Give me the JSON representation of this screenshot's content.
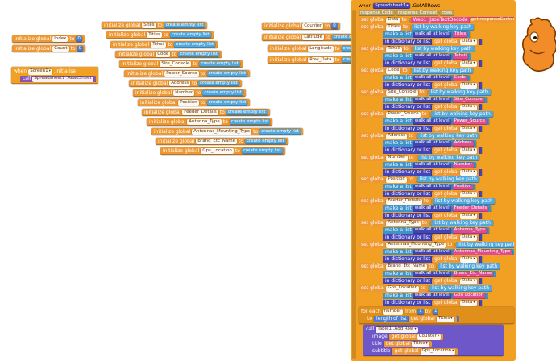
{
  "palette": {
    "variable_orange": "#EE9833",
    "event_gold": "#F2A024",
    "loop_gold": "#E08F1A",
    "list_cyan": "#55A8DB",
    "list_cyan_dark": "#3E94C8",
    "dictionary_navy": "#4444B4",
    "procedure_purple": "#8A55B1",
    "call_indigo": "#6E57C8",
    "text_pink": "#DE4D92",
    "math_blue": "#4D80D0",
    "param_tan": "#B89E5A",
    "mascot_orange": "#F28C28"
  },
  "labels": {
    "init": "initialize global",
    "to": "to",
    "create_empty_list": "create empty list",
    "set": "set global",
    "get": "get global",
    "walk_path": "list by walking key path",
    "make_list": "make a list",
    "walk_all": "walk all at level",
    "in_dict": "in dictionary or list",
    "when": "when",
    "do": "do",
    "call": "call",
    "for_each": "for each",
    "from": "from",
    "by": "by",
    "length_of_list": "length of list"
  },
  "left_inits": [
    {
      "name": "Index",
      "value": "0"
    },
    {
      "name": "Count",
      "value": "0"
    }
  ],
  "screen_event": {
    "component": "Screen1",
    "event": ".Initialise",
    "call": "Spreadsheet1 .ReadSheet"
  },
  "cascade_inits": [
    {
      "name": "Sites"
    },
    {
      "name": "Titles"
    },
    {
      "name": "Tehsil"
    },
    {
      "name": "Code"
    },
    {
      "name": "Site_Console"
    },
    {
      "name": "Power_Source"
    },
    {
      "name": "Address"
    },
    {
      "name": "Number"
    },
    {
      "name": "Position"
    },
    {
      "name": "Feeder_Details"
    },
    {
      "name": "Antenna_Type"
    },
    {
      "name": "Antennas_Mounting_Type"
    },
    {
      "name": "Brand_Etc_Name"
    },
    {
      "name": "Gps_Location"
    }
  ],
  "right_inits": [
    {
      "name": "Counter",
      "kind": "number",
      "value": "0"
    },
    {
      "name": "Latitude",
      "kind": "list"
    },
    {
      "name": "Longitude",
      "kind": "list"
    },
    {
      "name": "Row_Data",
      "kind": "list"
    }
  ],
  "main_event": {
    "component": "Spreadsheet1",
    "event": ".GotAllRows",
    "params": [
      {
        "label": "response Code"
      },
      {
        "label": "response Content"
      },
      {
        "label": "rows"
      }
    ],
    "first_row": {
      "target": "Data",
      "call": "Web1 .JsonTextDecode",
      "arg": "get responseContent"
    },
    "rows": [
      {
        "name": "Titles",
        "key": "Titles",
        "source": "Data"
      },
      {
        "name": "Tehsil",
        "key": "Tehsil",
        "source": "Data"
      },
      {
        "name": "Code",
        "key": "Code",
        "source": "Data"
      },
      {
        "name": "Site_Console",
        "key": "Site_Console",
        "source": "Data"
      },
      {
        "name": "Power_Source",
        "key": "Power_Source",
        "source": "Data"
      },
      {
        "name": "Address",
        "key": "Address",
        "source": "Data"
      },
      {
        "name": "Number",
        "key": "Number",
        "source": "Data"
      },
      {
        "name": "Position",
        "key": "Position",
        "source": "Data"
      },
      {
        "name": "Feeder_Details",
        "key": "Feeder_Details",
        "source": "Data"
      },
      {
        "name": "Antenna_Type",
        "key": "Antenna_Type",
        "source": "Data"
      },
      {
        "name": "Antennas_Mounting_Type",
        "key": "Antennas_Mounting_Type",
        "source": "Data"
      },
      {
        "name": "Brand_Etc_Name",
        "key": "Brand_Etc_Name",
        "source": "Data"
      },
      {
        "name": "Gps_Location",
        "key": "Gps_Location",
        "source": "Data"
      }
    ],
    "loop": {
      "var": "number",
      "from": "1",
      "by": "1",
      "list_source": "Titles"
    },
    "call": {
      "proc": "Table1 .Add Row",
      "args": [
        {
          "label": "image",
          "value_get": "Counter"
        },
        {
          "label": "title",
          "value_get": "Titles"
        },
        {
          "label": "subtitle",
          "value_get": "Gps_Location"
        }
      ]
    }
  }
}
